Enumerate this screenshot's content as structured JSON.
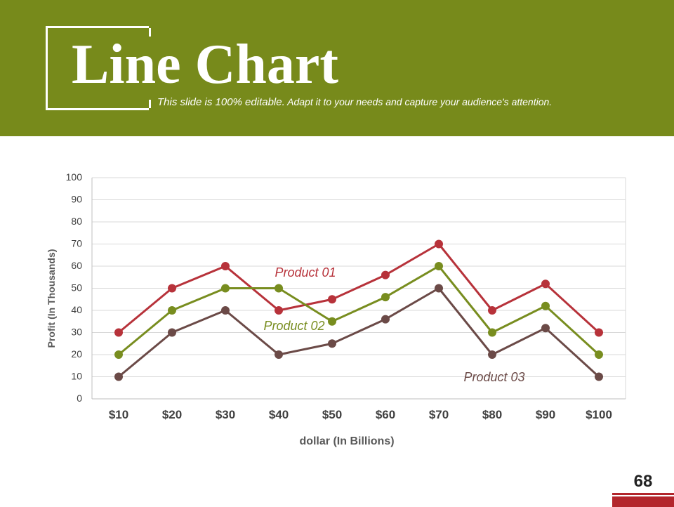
{
  "header": {
    "title": "Line Chart",
    "subtitle_strong": "This slide is 100% editable.",
    "subtitle_rest": " Adapt it to your needs and capture your audience's attention.",
    "background_color": "#778a1b"
  },
  "page_number": "68",
  "chart_data": {
    "type": "line",
    "title": "",
    "xlabel": "dollar (In Billions)",
    "ylabel": "Profit  (In Thousands)",
    "categories": [
      "$10",
      "$20",
      "$30",
      "$40",
      "$50",
      "$60",
      "$70",
      "$80",
      "$90",
      "$100"
    ],
    "ylim": [
      0,
      100
    ],
    "yticks": [
      0,
      10,
      20,
      30,
      40,
      50,
      60,
      70,
      80,
      90,
      100
    ],
    "grid": true,
    "series": [
      {
        "name": "Product 01",
        "color": "#b7323a",
        "values": [
          30,
          50,
          60,
          40,
          45,
          56,
          70,
          40,
          52,
          30
        ]
      },
      {
        "name": "Product 02",
        "color": "#788d1f",
        "values": [
          20,
          40,
          50,
          50,
          35,
          46,
          60,
          30,
          42,
          20
        ]
      },
      {
        "name": "Product 03",
        "color": "#6b4a47",
        "values": [
          10,
          30,
          40,
          20,
          25,
          36,
          50,
          20,
          32,
          10
        ]
      }
    ]
  }
}
